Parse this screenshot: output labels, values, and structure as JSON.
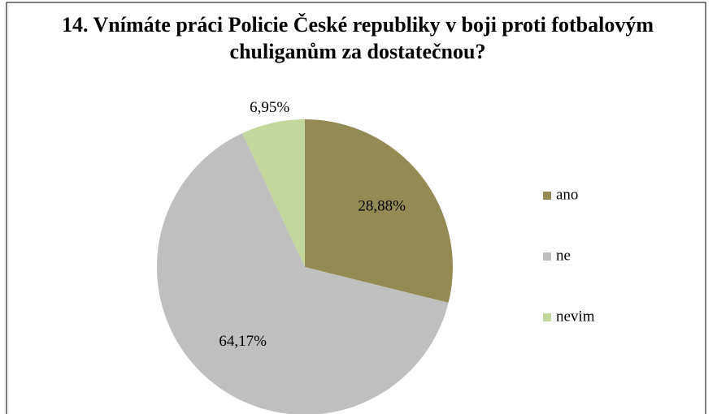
{
  "chart_data": {
    "type": "pie",
    "title": "14. Vnímáte práci Policie České republiky v boji proti fotbalovým chuliganům za dostatečnou?",
    "categories": [
      "ano",
      "ne",
      "nevim"
    ],
    "values": [
      28.88,
      64.17,
      6.95
    ],
    "value_labels": [
      "28,88%",
      "64,17%",
      "6,95%"
    ],
    "colors": [
      "#948a54",
      "#bfbfbf",
      "#c3d69b"
    ],
    "legend": "right"
  }
}
